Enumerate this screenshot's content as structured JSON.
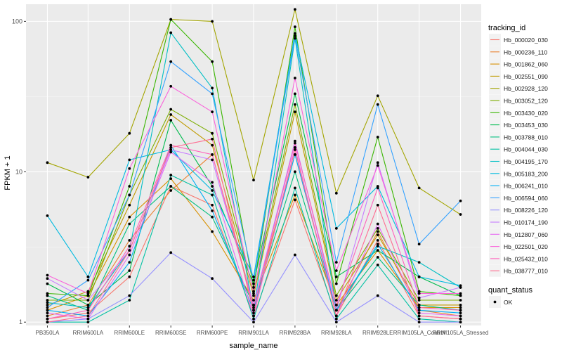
{
  "chart_data": {
    "type": "line",
    "title": "",
    "xlabel": "sample_name",
    "ylabel": "FPKM + 1",
    "y_scale": "log10",
    "ylim": [
      0.95,
      130
    ],
    "y_ticks": [
      1,
      10,
      100
    ],
    "y_tick_labels": [
      "1",
      "10",
      "100"
    ],
    "grid": true,
    "legend_position": "right",
    "categories": [
      "PB350LA",
      "RRIM600LA",
      "RRIM600LE",
      "RRIM600SE",
      "RRIM600PE",
      "RRIM901LA",
      "RRIM928BA",
      "RRIM928LA",
      "RRIM928LE",
      "RRIM105LA_Control",
      "RRIM105LA_Stressed"
    ],
    "legend_title": "tracking_id",
    "legend2_title": "quant_status",
    "legend2_item": "OK",
    "series": [
      {
        "name": "Hb_000020_030",
        "color": "#F8766D",
        "values": [
          1.05,
          1.15,
          2.0,
          8.0,
          6.0,
          1.1,
          6.5,
          1.1,
          3.5,
          1.1,
          1.05
        ]
      },
      {
        "name": "Hb_000236_110",
        "color": "#EA8331",
        "values": [
          1.1,
          1.3,
          3.5,
          7.5,
          13.0,
          1.3,
          13.0,
          1.2,
          4.0,
          1.2,
          1.1
        ]
      },
      {
        "name": "Hb_001862_060",
        "color": "#D89000",
        "values": [
          1.2,
          1.5,
          5.0,
          9.0,
          4.0,
          1.4,
          7.0,
          1.3,
          3.0,
          1.25,
          1.25
        ]
      },
      {
        "name": "Hb_002551_090",
        "color": "#C09B00",
        "values": [
          1.3,
          1.6,
          6.0,
          24.0,
          15.0,
          1.5,
          25.0,
          1.4,
          3.8,
          1.3,
          1.3
        ]
      },
      {
        "name": "Hb_002928_120",
        "color": "#A3A500",
        "values": [
          11.5,
          9.2,
          18.0,
          103.0,
          100.0,
          8.8,
          120.0,
          7.2,
          32.0,
          7.8,
          5.2
        ]
      },
      {
        "name": "Hb_003052_120",
        "color": "#7CAE00",
        "values": [
          1.4,
          1.4,
          7.0,
          26.0,
          18.0,
          1.6,
          28.0,
          1.5,
          4.2,
          1.4,
          1.4
        ]
      },
      {
        "name": "Hb_003430_020",
        "color": "#39B600",
        "values": [
          1.55,
          1.5,
          8.0,
          103.0,
          54.0,
          1.7,
          92.0,
          1.8,
          17.0,
          1.6,
          1.5
        ]
      },
      {
        "name": "Hb_003453_030",
        "color": "#00BB4E",
        "values": [
          1.8,
          1.3,
          2.2,
          22.0,
          8.0,
          1.8,
          33.0,
          2.0,
          3.0,
          2.0,
          1.5
        ]
      },
      {
        "name": "Hb_003788_010",
        "color": "#00BF7D",
        "values": [
          1.5,
          1.2,
          4.5,
          8.0,
          5.0,
          1.3,
          10.0,
          1.2,
          2.7,
          1.3,
          1.2
        ]
      },
      {
        "name": "Hb_004044_030",
        "color": "#00C1A3",
        "values": [
          1.0,
          1.0,
          1.4,
          9.5,
          7.0,
          1.05,
          7.8,
          1.05,
          2.4,
          1.05,
          1.0
        ]
      },
      {
        "name": "Hb_004195_170",
        "color": "#00BFC4",
        "values": [
          1.35,
          1.25,
          3.0,
          84.0,
          36.0,
          1.2,
          77.0,
          1.2,
          3.2,
          2.5,
          1.7
        ]
      },
      {
        "name": "Hb_005183_200",
        "color": "#00BAE0",
        "values": [
          5.1,
          2.0,
          12.0,
          14.0,
          7.5,
          2.0,
          83.0,
          4.2,
          8.0,
          2.0,
          1.75
        ]
      },
      {
        "name": "Hb_006241_010",
        "color": "#00B0F6",
        "values": [
          1.2,
          1.1,
          2.5,
          15.0,
          5.5,
          1.2,
          13.0,
          1.2,
          3.3,
          1.2,
          1.15
        ]
      },
      {
        "name": "Hb_006594_060",
        "color": "#35A2FF",
        "values": [
          1.25,
          1.9,
          7.0,
          54.0,
          33.0,
          1.9,
          80.0,
          2.5,
          28.0,
          3.3,
          6.4
        ]
      },
      {
        "name": "Hb_008226_120",
        "color": "#9590FF",
        "values": [
          1.0,
          1.05,
          1.5,
          2.9,
          1.95,
          1.0,
          2.8,
          1.0,
          1.5,
          1.0,
          1.0
        ]
      },
      {
        "name": "Hb_010174_190",
        "color": "#C77CFF",
        "values": [
          1.95,
          1.4,
          3.0,
          14.0,
          12.0,
          1.3,
          16.0,
          1.2,
          11.5,
          1.45,
          1.7
        ]
      },
      {
        "name": "Hb_012807_060",
        "color": "#E76BF3",
        "values": [
          1.15,
          1.05,
          2.8,
          13.5,
          8.5,
          1.1,
          14.5,
          1.1,
          4.5,
          1.15,
          1.1
        ]
      },
      {
        "name": "Hb_022501_020",
        "color": "#FA62DB",
        "values": [
          2.05,
          1.55,
          10.5,
          37.0,
          25.0,
          1.55,
          42.0,
          2.2,
          11.0,
          1.55,
          1.55
        ]
      },
      {
        "name": "Hb_025432_010",
        "color": "#FF62BC",
        "values": [
          1.05,
          1.2,
          3.2,
          15.0,
          13.0,
          1.25,
          15.5,
          1.3,
          7.8,
          1.25,
          1.2
        ]
      },
      {
        "name": "Hb_038777_010",
        "color": "#FF6C91",
        "values": [
          1.0,
          1.1,
          3.0,
          14.5,
          16.5,
          1.15,
          14.0,
          1.1,
          6.0,
          1.1,
          1.05
        ]
      }
    ]
  }
}
